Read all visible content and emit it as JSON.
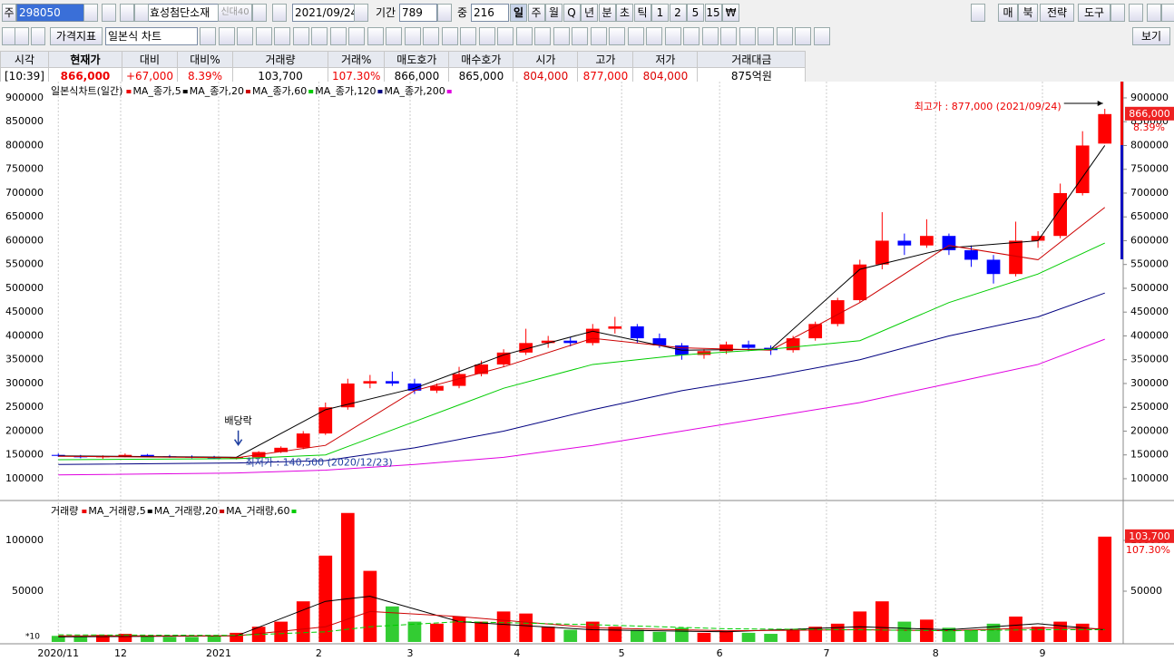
{
  "toolbar": {
    "market": "주",
    "code": "298050",
    "name": "효성첨단소재",
    "badge": "신대40",
    "date": "2021/09/24",
    "period_label": "기간",
    "period": "789",
    "zoom_label": "중",
    "zoom": "216",
    "intervals": [
      "일",
      "주",
      "월",
      "Q",
      "년",
      "분",
      "초",
      "틱",
      "1",
      "2",
      "5",
      "15",
      "₩"
    ],
    "right_buttons": [
      "매",
      "북",
      "전략",
      "도구"
    ],
    "indicator": "가격지표",
    "chart_style": "일본식 차트",
    "view": "보기"
  },
  "quote": {
    "headers": [
      "시각",
      "현재가",
      "대비",
      "대비%",
      "거래량",
      "거래%",
      "매도호가",
      "매수호가",
      "시가",
      "고가",
      "저가",
      "거래대금"
    ],
    "values": [
      "[10:39]",
      "866,000",
      "+67,000",
      "8.39%",
      "103,700",
      "107.30%",
      "866,000",
      "865,000",
      "804,000",
      "877,000",
      "804,000",
      "875억원"
    ]
  },
  "chart_data": [
    {
      "type": "candlestick",
      "title": "일본식차트(일간)",
      "categories": [
        null,
        null,
        null,
        null,
        null,
        null,
        null,
        null,
        null,
        null,
        null,
        null,
        null,
        null,
        null,
        null,
        null,
        null,
        null,
        null,
        null,
        null,
        null,
        null,
        null,
        null,
        null,
        null,
        null,
        null,
        null,
        null,
        null,
        null,
        null,
        null,
        null,
        null,
        null,
        null,
        null,
        null,
        null,
        null,
        null,
        null,
        null,
        null
      ],
      "open": [
        150000,
        148000,
        145000,
        147000,
        150000,
        147000,
        146000,
        145000,
        143000,
        145000,
        156000,
        165000,
        195000,
        250000,
        300000,
        305000,
        300000,
        285000,
        295000,
        320000,
        340000,
        365000,
        385000,
        390000,
        385000,
        415000,
        420000,
        395000,
        380000,
        360000,
        368000,
        382000,
        375000,
        370000,
        395000,
        425000,
        475000,
        550000,
        600000,
        590000,
        610000,
        580000,
        560000,
        530000,
        600000,
        610000,
        700000,
        804000
      ],
      "high": [
        153000,
        150000,
        149000,
        153000,
        152000,
        150000,
        149000,
        148000,
        146000,
        158000,
        168000,
        200000,
        260000,
        310000,
        318000,
        325000,
        310000,
        300000,
        335000,
        348000,
        372000,
        415000,
        400000,
        398000,
        425000,
        440000,
        425000,
        405000,
        385000,
        372000,
        388000,
        390000,
        380000,
        400000,
        430000,
        480000,
        560000,
        660000,
        615000,
        645000,
        615000,
        590000,
        570000,
        640000,
        620000,
        720000,
        830000,
        877000
      ],
      "low": [
        146000,
        143000,
        142000,
        145000,
        146000,
        144000,
        143000,
        141000,
        140500,
        144000,
        154000,
        162000,
        192000,
        245000,
        290000,
        295000,
        278000,
        280000,
        290000,
        315000,
        335000,
        360000,
        375000,
        378000,
        380000,
        405000,
        385000,
        375000,
        350000,
        352000,
        362000,
        368000,
        360000,
        365000,
        390000,
        420000,
        470000,
        540000,
        570000,
        585000,
        570000,
        545000,
        510000,
        525000,
        585000,
        605000,
        695000,
        804000
      ],
      "close": [
        148000,
        145000,
        147000,
        150000,
        147000,
        146000,
        145000,
        143000,
        145000,
        156000,
        165000,
        195000,
        250000,
        300000,
        305000,
        300000,
        285000,
        295000,
        320000,
        340000,
        365000,
        385000,
        390000,
        385000,
        415000,
        420000,
        395000,
        380000,
        360000,
        368000,
        382000,
        375000,
        370000,
        395000,
        425000,
        475000,
        550000,
        600000,
        590000,
        610000,
        580000,
        560000,
        530000,
        600000,
        610000,
        700000,
        800000,
        866000
      ],
      "up_color": "#ff0000",
      "down_color": "#0000ff",
      "series": [
        {
          "name": "MA_종가,5",
          "color": "#000000",
          "x": [
            0,
            8,
            12,
            16,
            20,
            24,
            28,
            32,
            36,
            40,
            44,
            47
          ],
          "values": [
            148000,
            145000,
            245000,
            290000,
            360000,
            410000,
            370000,
            372000,
            540000,
            585000,
            600000,
            800000
          ]
        },
        {
          "name": "MA_종가,20",
          "color": "#cc0000",
          "x": [
            0,
            8,
            12,
            16,
            20,
            24,
            28,
            32,
            36,
            40,
            44,
            47
          ],
          "values": [
            147000,
            144000,
            170000,
            285000,
            335000,
            395000,
            375000,
            370000,
            470000,
            590000,
            560000,
            670000
          ]
        },
        {
          "name": "MA_종가,60",
          "color": "#00cc00",
          "x": [
            0,
            8,
            12,
            16,
            20,
            24,
            28,
            32,
            36,
            40,
            44,
            47
          ],
          "values": [
            140000,
            142000,
            150000,
            220000,
            290000,
            340000,
            360000,
            372000,
            390000,
            470000,
            530000,
            595000
          ]
        },
        {
          "name": "MA_종가,120",
          "color": "#000080",
          "x": [
            0,
            8,
            12,
            16,
            20,
            24,
            28,
            32,
            36,
            40,
            44,
            47
          ],
          "values": [
            130000,
            133000,
            138000,
            165000,
            200000,
            245000,
            285000,
            315000,
            350000,
            400000,
            440000,
            490000
          ]
        },
        {
          "name": "MA_종가,200",
          "color": "#e000e0",
          "x": [
            0,
            8,
            12,
            16,
            20,
            24,
            28,
            32,
            36,
            40,
            44,
            47
          ],
          "values": [
            108000,
            112000,
            118000,
            130000,
            145000,
            170000,
            200000,
            230000,
            260000,
            300000,
            340000,
            393000
          ]
        }
      ],
      "ylim": [
        58000,
        928500
      ],
      "yticks": [
        900000,
        850000,
        800000,
        750000,
        700000,
        650000,
        600000,
        550000,
        500000,
        450000,
        400000,
        350000,
        300000,
        250000,
        200000,
        150000,
        100000
      ],
      "xticks": [
        {
          "value": 0,
          "label": "2020/11"
        },
        {
          "value": 2.8,
          "label": "12"
        },
        {
          "value": 7.2,
          "label": "2021"
        },
        {
          "value": 11.7,
          "label": "2"
        },
        {
          "value": 15.8,
          "label": "3"
        },
        {
          "value": 20.6,
          "label": "4"
        },
        {
          "value": 25.3,
          "label": "5"
        },
        {
          "value": 29.7,
          "label": "6"
        },
        {
          "value": 34.5,
          "label": "7"
        },
        {
          "value": 39.4,
          "label": "8"
        },
        {
          "value": 44.2,
          "label": "9"
        }
      ],
      "high_note": "최고가 : 877,000 (2021/09/24)",
      "low_note": "최저가 : 140,500 (2020/12/23)",
      "event_note": "배당락",
      "last_label": "866,000",
      "change_label": "8.39%",
      "grid": true
    },
    {
      "type": "bar",
      "title": "거래량",
      "values": [
        6000,
        5000,
        7000,
        8000,
        6000,
        5000,
        5000,
        6000,
        9000,
        15000,
        20000,
        40000,
        85000,
        127000,
        70000,
        35000,
        20000,
        18000,
        25000,
        20000,
        30000,
        28000,
        15000,
        12000,
        20000,
        15000,
        12000,
        10000,
        14000,
        9000,
        11000,
        9000,
        8000,
        12000,
        15000,
        18000,
        30000,
        40000,
        20000,
        22000,
        14000,
        12000,
        18000,
        25000,
        15000,
        20000,
        18000,
        103700
      ],
      "up_color": "#ff0000",
      "down_color": "#33cc33",
      "series": [
        {
          "name": "MA_거래량,5",
          "color": "#000000",
          "x": [
            0,
            8,
            12,
            14,
            18,
            24,
            30,
            36,
            40,
            44,
            47
          ],
          "values": [
            5000,
            6000,
            40000,
            45000,
            20000,
            12000,
            10000,
            15000,
            12000,
            18000,
            12000
          ]
        },
        {
          "name": "MA_거래량,20",
          "color": "#cc0000",
          "x": [
            0,
            8,
            12,
            14,
            18,
            24,
            30,
            36,
            40,
            44,
            47
          ],
          "values": [
            6000,
            6000,
            15000,
            30000,
            25000,
            14000,
            11000,
            12000,
            11000,
            14000,
            13000
          ]
        },
        {
          "name": "MA_거래량,60",
          "color": "#00cc00",
          "x": [
            0,
            8,
            12,
            14,
            18,
            24,
            30,
            36,
            40,
            44,
            47
          ],
          "values": [
            7000,
            6500,
            10000,
            15000,
            20000,
            17000,
            13000,
            12000,
            11000,
            12000,
            12000
          ]
        }
      ],
      "ylim": [
        0,
        135700
      ],
      "yticks": [
        100000,
        50000
      ],
      "unit_label": "*10",
      "last_label": "103,700",
      "ratio_label": "107.30%"
    }
  ]
}
